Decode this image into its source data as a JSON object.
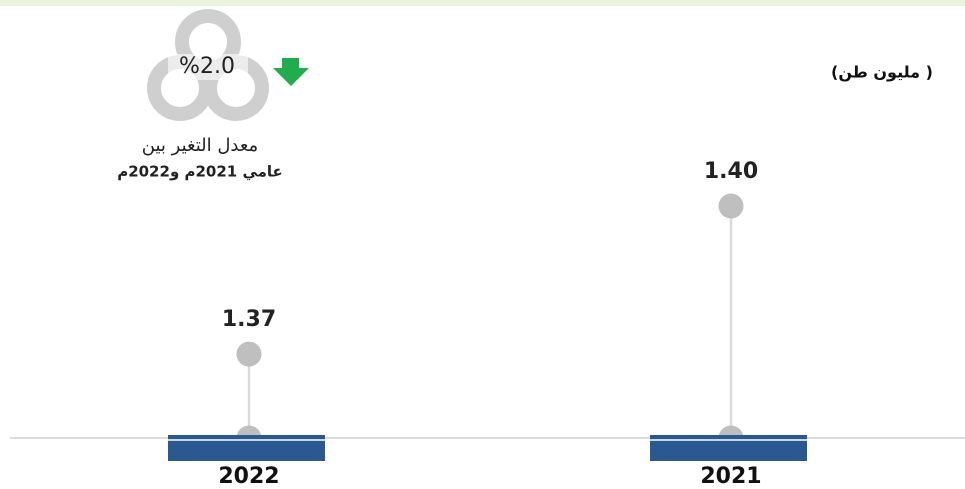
{
  "chart_data": {
    "type": "lollipop",
    "unit_label": "(مليون طن )",
    "categories": [
      "2022",
      "2021"
    ],
    "values": [
      1.37,
      1.4
    ],
    "value_labels": [
      "1.37",
      "1.40"
    ],
    "color": "#bfbfbf",
    "category_color": "#2a5890",
    "ylim": [
      1.353,
      1.4
    ],
    "change_label": "%2.0",
    "change_direction": "down",
    "change_caption": [
      "معدل التغير بين",
      "عامي 2021م و2022م"
    ]
  }
}
